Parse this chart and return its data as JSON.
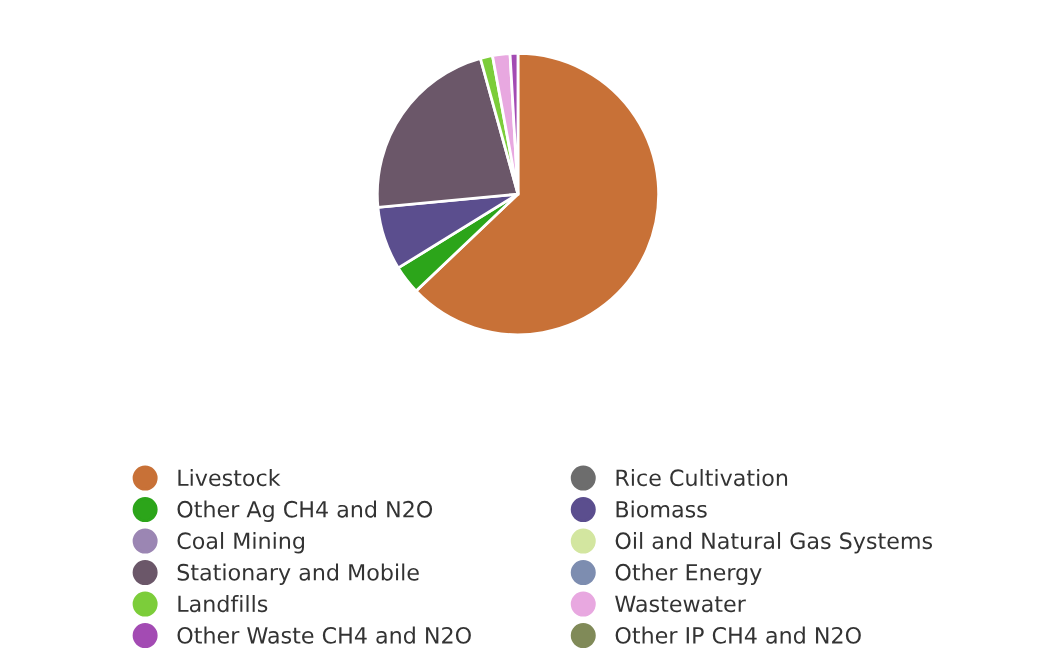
{
  "chart_data": {
    "type": "pie",
    "categories": [
      "Livestock",
      "Rice Cultivation",
      "Other Ag CH4 and N2O",
      "Biomass",
      "Coal Mining",
      "Oil and Natural Gas Systems",
      "Stationary and Mobile",
      "Other Energy",
      "Landfills",
      "Wastewater",
      "Other Waste CH4 and N2O",
      "Other IP CH4 and N2O"
    ],
    "values": [
      62.9,
      0,
      3.3,
      7.3,
      0,
      0,
      22.2,
      0,
      1.4,
      2.0,
      0.9,
      0
    ],
    "colors": [
      "#c87137",
      "#6d6d6d",
      "#2ca51a",
      "#5b4e8e",
      "#9b86b3",
      "#d3e6a0",
      "#6b5769",
      "#7d8db0",
      "#7ccd3a",
      "#e8a8e0",
      "#a34bb3",
      "#808a58"
    ],
    "legend": "bottom"
  }
}
